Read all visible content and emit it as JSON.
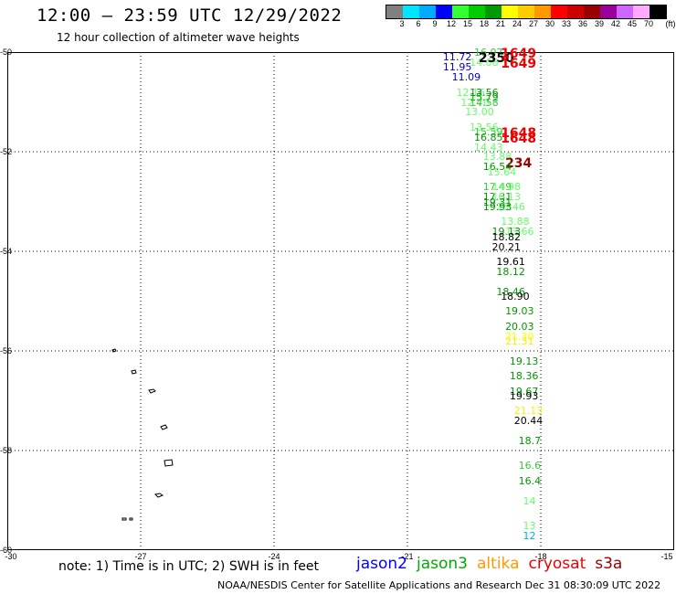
{
  "header": {
    "title": "12:00 — 23:59 UTC 12/29/2022",
    "subtitle": "12 hour collection of altimeter wave heights"
  },
  "colorbar": {
    "colors": [
      "#808080",
      "#00e5ff",
      "#00aaff",
      "#0000ff",
      "#33ff33",
      "#00cc00",
      "#009900",
      "#ffff00",
      "#ffcc00",
      "#ff9900",
      "#ff0000",
      "#cc0000",
      "#990000",
      "#990099",
      "#cc66ff",
      "#ffaaff",
      "#000000"
    ],
    "ticks": [
      "3",
      "6",
      "9",
      "12",
      "15",
      "18",
      "21",
      "24",
      "27",
      "30",
      "33",
      "36",
      "39",
      "42",
      "45",
      "70",
      "(ft)"
    ]
  },
  "map": {
    "lat_labels": [
      "-50",
      "-52",
      "-54",
      "-56",
      "-58",
      "-60"
    ],
    "lon_labels": [
      "-30",
      "-27",
      "-24",
      "-21",
      "-18",
      "-15"
    ],
    "lon_range": [
      -30,
      -15
    ],
    "lat_range": [
      -50,
      -60
    ],
    "observations": [
      {
        "label": "11.72",
        "lon": -20.2,
        "lat": -50.1,
        "color": "#0000cc"
      },
      {
        "label": "11.95",
        "lon": -20.2,
        "lat": -50.3,
        "color": "#0000cc"
      },
      {
        "label": "11.09",
        "lon": -20.0,
        "lat": -50.5,
        "color": "#0000cc"
      },
      {
        "label": "16.07",
        "lon": -19.5,
        "lat": -50.0,
        "color": "#33cc33"
      },
      {
        "label": "14.08",
        "lon": -19.6,
        "lat": -50.2,
        "color": "#66ff66"
      },
      {
        "label": "2350",
        "lon": -19.4,
        "lat": -50.1,
        "color": "#000000",
        "big": true
      },
      {
        "label": "1649",
        "lon": -18.9,
        "lat": -50.0,
        "color": "#ee0000",
        "big": true
      },
      {
        "label": "1649",
        "lon": -18.9,
        "lat": -50.2,
        "color": "#ee0000",
        "big": true
      },
      {
        "label": "12.16",
        "lon": -19.9,
        "lat": -50.8,
        "color": "#66ff66"
      },
      {
        "label": "13.56",
        "lon": -19.6,
        "lat": -50.8,
        "color": "#009900"
      },
      {
        "label": "12.70",
        "lon": -19.8,
        "lat": -51.0,
        "color": "#66ff66"
      },
      {
        "label": "15.79",
        "lon": -19.6,
        "lat": -50.9,
        "color": "#009900"
      },
      {
        "label": "14.58",
        "lon": -19.6,
        "lat": -51.0,
        "color": "#33cc33"
      },
      {
        "label": "13.00",
        "lon": -19.7,
        "lat": -51.2,
        "color": "#66ff66"
      },
      {
        "label": "13.56",
        "lon": -19.6,
        "lat": -51.5,
        "color": "#66ff66"
      },
      {
        "label": "15.59",
        "lon": -19.5,
        "lat": -51.6,
        "color": "#33cc33"
      },
      {
        "label": "16.85",
        "lon": -19.5,
        "lat": -51.7,
        "color": "#009900"
      },
      {
        "label": "1648",
        "lon": -18.9,
        "lat": -51.6,
        "color": "#ee0000",
        "big": true
      },
      {
        "label": "1648",
        "lon": -18.9,
        "lat": -51.7,
        "color": "#ee0000",
        "big": true
      },
      {
        "label": "14.43",
        "lon": -19.5,
        "lat": -51.9,
        "color": "#66ff66"
      },
      {
        "label": "13.88",
        "lon": -19.3,
        "lat": -52.1,
        "color": "#66ff66"
      },
      {
        "label": "234",
        "lon": -18.8,
        "lat": -52.2,
        "color": "#990000",
        "big": true
      },
      {
        "label": "16.54",
        "lon": -19.3,
        "lat": -52.3,
        "color": "#009900"
      },
      {
        "label": "15.64",
        "lon": -19.2,
        "lat": -52.4,
        "color": "#66ff66"
      },
      {
        "label": "17.49",
        "lon": -19.3,
        "lat": -52.7,
        "color": "#33cc33"
      },
      {
        "label": "14.98",
        "lon": -19.1,
        "lat": -52.7,
        "color": "#66ff66"
      },
      {
        "label": "17.31",
        "lon": -19.3,
        "lat": -52.9,
        "color": "#009900"
      },
      {
        "label": "16.13",
        "lon": -19.1,
        "lat": -52.9,
        "color": "#66ff66"
      },
      {
        "label": "19.31",
        "lon": -19.3,
        "lat": -53.0,
        "color": "#009900"
      },
      {
        "label": "15.46",
        "lon": -19.0,
        "lat": -53.1,
        "color": "#66ff66"
      },
      {
        "label": "19.93",
        "lon": -19.3,
        "lat": -53.1,
        "color": "#009900"
      },
      {
        "label": "13.88",
        "lon": -18.9,
        "lat": -53.4,
        "color": "#66ff66"
      },
      {
        "label": "19.13",
        "lon": -19.1,
        "lat": -53.6,
        "color": "#009900"
      },
      {
        "label": "13.66",
        "lon": -18.8,
        "lat": -53.6,
        "color": "#66ff66"
      },
      {
        "label": "18.82",
        "lon": -19.1,
        "lat": -53.7,
        "color": "#000000"
      },
      {
        "label": "20.21",
        "lon": -19.1,
        "lat": -53.9,
        "color": "#000000"
      },
      {
        "label": "19.61",
        "lon": -19.0,
        "lat": -54.2,
        "color": "#000000"
      },
      {
        "label": "18.12",
        "lon": -19.0,
        "lat": -54.4,
        "color": "#009900"
      },
      {
        "label": "18.46",
        "lon": -19.0,
        "lat": -54.8,
        "color": "#009900"
      },
      {
        "label": "18.90",
        "lon": -18.9,
        "lat": -54.9,
        "color": "#000000"
      },
      {
        "label": "19.03",
        "lon": -18.8,
        "lat": -55.2,
        "color": "#009900"
      },
      {
        "label": "20.03",
        "lon": -18.8,
        "lat": -55.5,
        "color": "#009900"
      },
      {
        "label": "21.30",
        "lon": -18.8,
        "lat": -55.7,
        "color": "#ffff00"
      },
      {
        "label": "21.31",
        "lon": -18.8,
        "lat": -55.8,
        "color": "#ffee00"
      },
      {
        "label": "19.13",
        "lon": -18.7,
        "lat": -56.2,
        "color": "#009900"
      },
      {
        "label": "18.36",
        "lon": -18.7,
        "lat": -56.5,
        "color": "#009900"
      },
      {
        "label": "19.67",
        "lon": -18.7,
        "lat": -56.8,
        "color": "#009900"
      },
      {
        "label": "19.93",
        "lon": -18.7,
        "lat": -56.9,
        "color": "#000000"
      },
      {
        "label": "21.13",
        "lon": -18.6,
        "lat": -57.2,
        "color": "#ffee00"
      },
      {
        "label": "20.44",
        "lon": -18.6,
        "lat": -57.4,
        "color": "#000000"
      },
      {
        "label": "18.7",
        "lon": -18.5,
        "lat": -57.8,
        "color": "#009900"
      },
      {
        "label": "16.6",
        "lon": -18.5,
        "lat": -58.3,
        "color": "#33cc33"
      },
      {
        "label": "16.4",
        "lon": -18.5,
        "lat": -58.6,
        "color": "#009900"
      },
      {
        "label": "14",
        "lon": -18.4,
        "lat": -59.0,
        "color": "#66ff66"
      },
      {
        "label": "13",
        "lon": -18.4,
        "lat": -59.5,
        "color": "#66ff66"
      },
      {
        "label": "12",
        "lon": -18.4,
        "lat": -59.7,
        "color": "#00aaff"
      }
    ]
  },
  "footer": {
    "note": "note: 1) Time is in UTC; 2) SWH is in feet",
    "legend": [
      {
        "name": "jason2",
        "color": "#0000ff"
      },
      {
        "name": "jason3",
        "color": "#00aa00"
      },
      {
        "name": "altika",
        "color": "#ff9900"
      },
      {
        "name": "cryosat",
        "color": "#ee0000"
      },
      {
        "name": "s3a",
        "color": "#990000"
      }
    ],
    "credit": "NOAA/NESDIS Center for Satellite Applications and Research   Dec 31 08:30:09 UTC 2022"
  }
}
